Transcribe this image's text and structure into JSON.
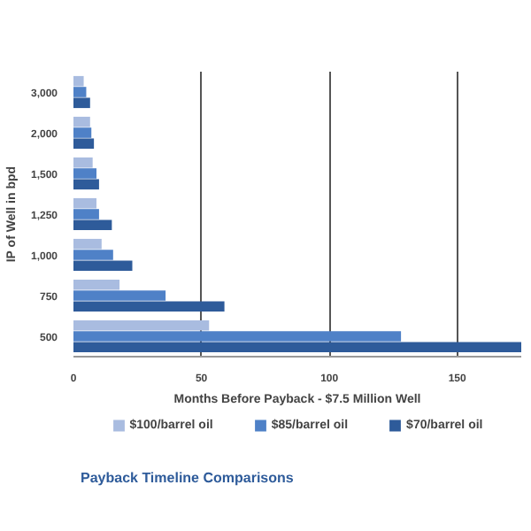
{
  "chart_data": {
    "type": "bar",
    "orientation": "horizontal",
    "title": "Payback Timeline Comparisons",
    "xlabel": "Months Before Payback - $7.5 Million Well",
    "ylabel": "IP of Well in bpd",
    "categories": [
      "3,000",
      "2,000",
      "1,500",
      "1,250",
      "1,000",
      "750",
      "500"
    ],
    "series": [
      {
        "name": "$100/barrel oil",
        "color": "#a9bce0",
        "values": [
          4,
          6.5,
          7.5,
          9,
          11,
          18,
          53
        ]
      },
      {
        "name": "$85/barrel oil",
        "color": "#4f81c7",
        "values": [
          5,
          7,
          9,
          10,
          15.5,
          36,
          128
        ]
      },
      {
        "name": "$70/barrel oil",
        "color": "#2e5b9a",
        "values": [
          6.5,
          8,
          10,
          15,
          23,
          59,
          175
        ]
      }
    ],
    "xlim": [
      0,
      175
    ],
    "xticks": [
      0,
      50,
      100,
      150
    ],
    "grid": "x",
    "legend": "bottom"
  }
}
